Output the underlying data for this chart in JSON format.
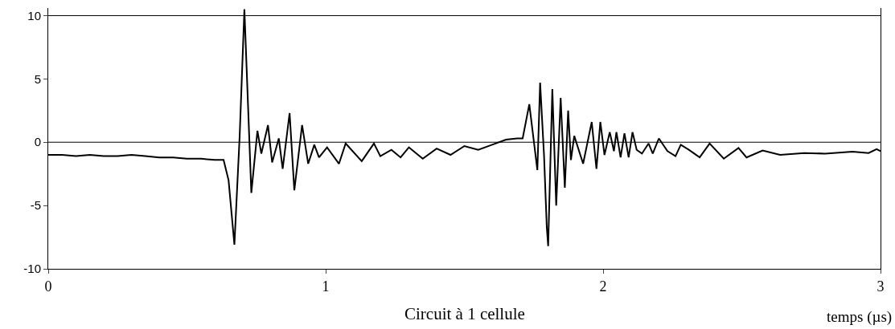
{
  "chart_data": {
    "type": "line",
    "title": "Circuit à 1 cellule",
    "xlabel": "temps (µs)",
    "x": [
      0,
      0.05,
      0.1,
      0.15,
      0.2,
      0.25,
      0.3,
      0.35,
      0.4,
      0.45,
      0.5,
      0.55,
      0.6,
      0.632,
      0.65,
      0.671,
      0.69,
      0.707,
      0.72,
      0.732,
      0.754,
      0.768,
      0.792,
      0.807,
      0.831,
      0.845,
      0.87,
      0.887,
      0.915,
      0.937,
      0.959,
      0.976,
      1.005,
      1.048,
      1.072,
      1.13,
      1.174,
      1.197,
      1.237,
      1.27,
      1.3,
      1.35,
      1.4,
      1.45,
      1.5,
      1.55,
      1.6,
      1.65,
      1.69,
      1.71,
      1.734,
      1.763,
      1.773,
      1.787,
      1.797,
      1.802,
      1.817,
      1.831,
      1.847,
      1.862,
      1.874,
      1.884,
      1.896,
      1.928,
      1.959,
      1.976,
      1.99,
      2.005,
      2.024,
      2.039,
      2.048,
      2.063,
      2.077,
      2.092,
      2.106,
      2.121,
      2.14,
      2.164,
      2.179,
      2.201,
      2.232,
      2.261,
      2.28,
      2.309,
      2.348,
      2.384,
      2.435,
      2.488,
      2.517,
      2.575,
      2.638,
      2.725,
      2.8,
      2.899,
      2.957,
      2.986,
      3.0
    ],
    "values": [
      -1.0,
      -1.0,
      -1.1,
      -1.0,
      -1.1,
      -1.1,
      -1.0,
      -1.1,
      -1.2,
      -1.2,
      -1.3,
      -1.3,
      -1.4,
      -1.4,
      -3.0,
      -8.1,
      0.5,
      10.5,
      3.0,
      -4.0,
      0.9,
      -0.9,
      1.35,
      -1.6,
      0.3,
      -2.1,
      2.3,
      -3.8,
      1.35,
      -1.7,
      -0.2,
      -1.2,
      -0.4,
      -1.7,
      -0.1,
      -1.5,
      -0.1,
      -1.1,
      -0.6,
      -1.2,
      -0.4,
      -1.3,
      -0.5,
      -1.0,
      -0.3,
      -0.6,
      -0.2,
      0.2,
      0.3,
      0.3,
      3.0,
      -2.2,
      4.7,
      -1.0,
      -6.7,
      -8.2,
      4.2,
      -5.0,
      3.5,
      -3.6,
      2.5,
      -1.4,
      0.5,
      -1.7,
      1.6,
      -2.1,
      1.6,
      -1.0,
      0.8,
      -0.7,
      0.8,
      -1.2,
      0.7,
      -1.2,
      0.8,
      -0.6,
      -0.9,
      -0.1,
      -0.9,
      0.3,
      -0.7,
      -1.1,
      -0.2,
      -0.6,
      -1.2,
      -0.1,
      -1.3,
      -0.45,
      -1.2,
      -0.65,
      -1.0,
      -0.85,
      -0.9,
      -0.75,
      -0.85,
      -0.55,
      -0.7
    ],
    "color": "#000000",
    "xlim": [
      0,
      3
    ],
    "xticks": [
      0,
      1,
      2,
      3
    ],
    "ylim": [
      -10,
      10.6
    ],
    "yticks": [
      -10,
      -5,
      0,
      5,
      10
    ],
    "ref_lines": [
      {
        "axis": "y",
        "value": 0
      },
      {
        "axis": "y",
        "value": 10
      }
    ]
  }
}
